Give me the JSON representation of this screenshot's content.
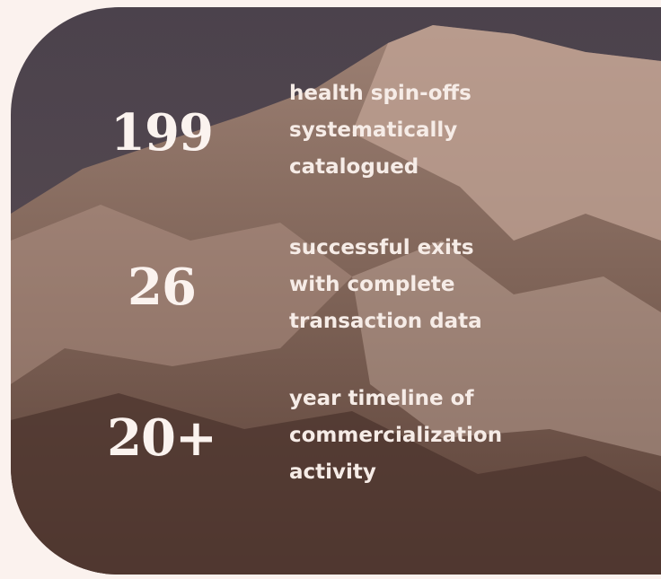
{
  "stats": [
    {
      "number": "199",
      "lines": [
        "health spin-offs",
        "systematically",
        "catalogued"
      ]
    },
    {
      "number": "26",
      "lines": [
        "successful exits",
        "with complete",
        "transaction data"
      ]
    },
    {
      "number": "20+",
      "lines": [
        "year timeline of",
        "commercialization",
        "activity"
      ]
    }
  ]
}
